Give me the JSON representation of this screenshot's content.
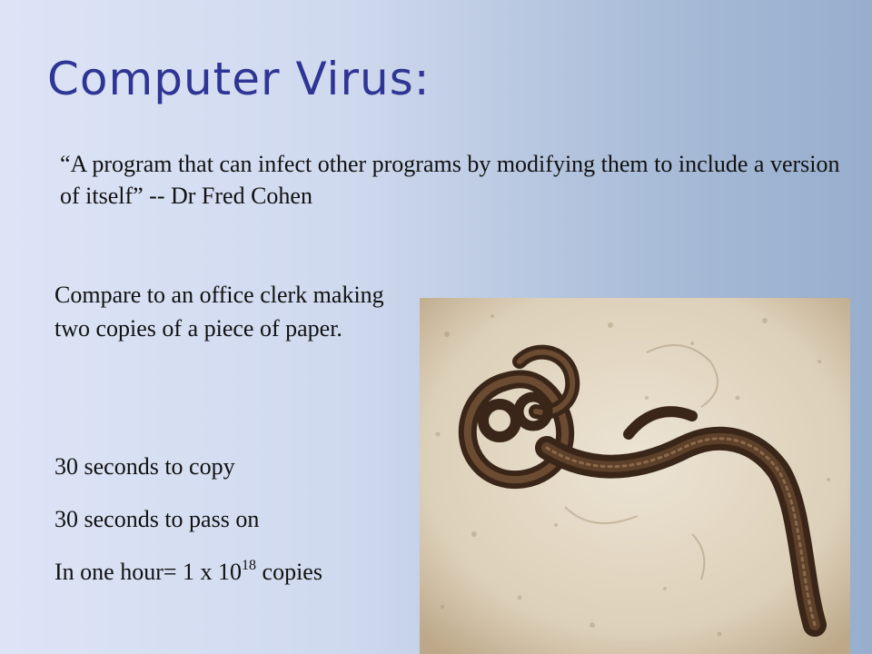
{
  "slide": {
    "title": "Computer Virus:",
    "quote": "“A program that can infect other programs by modifying them to include a version of itself” -- Dr Fred Cohen",
    "comparison": "Compare to an office clerk making two copies of a piece of paper.",
    "facts": {
      "copy_time": "30 seconds to copy",
      "pass_time": "30 seconds to pass on",
      "hour_prefix": "In one hour= 1 x 10",
      "hour_exponent": "18",
      "hour_suffix": " copies"
    }
  }
}
